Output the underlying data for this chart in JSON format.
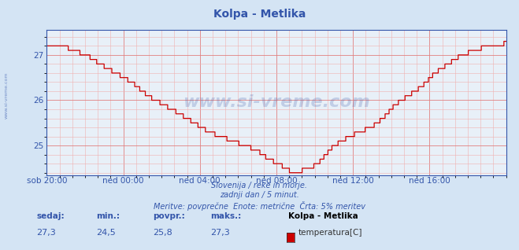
{
  "title": "Kolpa - Metlika",
  "bg_color": "#d4e4f4",
  "plot_bg_color": "#e8f0f8",
  "line_color": "#cc0000",
  "grid_color_minor": "#f0b0b0",
  "grid_color_major": "#e08080",
  "axis_color": "#3355aa",
  "text_color": "#3355aa",
  "yticks": [
    25,
    26,
    27
  ],
  "ymin": 24.35,
  "ymax": 27.55,
  "xtick_labels": [
    "sob 20:00",
    "ned 00:00",
    "ned 04:00",
    "ned 08:00",
    "ned 12:00",
    "ned 16:00"
  ],
  "xtick_positions": [
    0,
    288,
    576,
    864,
    1152,
    1440
  ],
  "total_points": 1729,
  "subtitle1": "Slovenija / reke in morje.",
  "subtitle2": "zadnji dan / 5 minut.",
  "subtitle3": "Meritve: povprečne  Enote: metrične  Črta: 5% meritev",
  "legend_station": "Kolpa - Metlika",
  "legend_label": "temperatura[C]",
  "legend_color": "#cc0000",
  "stat_labels": [
    "sedaj:",
    "min.:",
    "povpr.:",
    "maks.:"
  ],
  "stat_values": [
    "27,3",
    "24,5",
    "25,8",
    "27,3"
  ],
  "watermark": "www.si-vreme.com",
  "side_text": "www.si-vreme.com"
}
